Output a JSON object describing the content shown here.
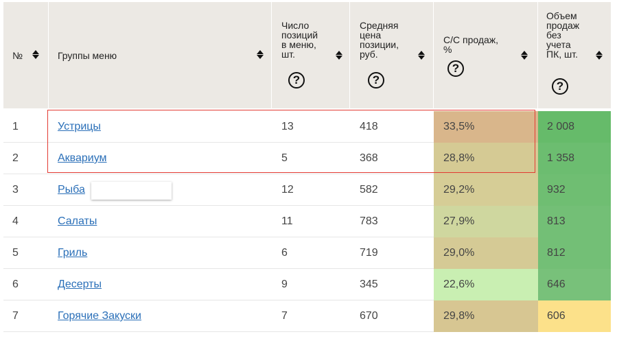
{
  "headers": {
    "num": "№",
    "group": "Группы меню",
    "positions": "Число\nпозиций\nв меню,\nшт.",
    "avg_price": "Средняя\nцена\nпозиции,\nруб.",
    "cost_share": "С/С продаж,\n%",
    "volume": "Объем\nпродаж\nбез\nучета\nПК, шт.",
    "help_glyph": "?"
  },
  "rows": [
    {
      "num": "1",
      "group": "Устрицы",
      "positions": "13",
      "avg_price": "418",
      "cost_share": "33,5%",
      "volume": "2 008"
    },
    {
      "num": "2",
      "group": "Аквариум",
      "positions": "5",
      "avg_price": "368",
      "cost_share": "28,8%",
      "volume": "1 358"
    },
    {
      "num": "3",
      "group": "Рыба",
      "positions": "12",
      "avg_price": "582",
      "cost_share": "29,2%",
      "volume": "932"
    },
    {
      "num": "4",
      "group": "Салаты",
      "positions": "11",
      "avg_price": "783",
      "cost_share": "27,9%",
      "volume": "813"
    },
    {
      "num": "5",
      "group": "Гриль",
      "positions": "6",
      "avg_price": "719",
      "cost_share": "29,0%",
      "volume": "812"
    },
    {
      "num": "6",
      "group": "Десерты",
      "positions": "9",
      "avg_price": "345",
      "cost_share": "22,6%",
      "volume": "646"
    },
    {
      "num": "7",
      "group": "Горячие Закуски",
      "positions": "7",
      "avg_price": "670",
      "cost_share": "29,8%",
      "volume": "606"
    }
  ],
  "colors": {
    "header_bg": "#ece9e4",
    "link": "#2a6fb8",
    "highlight_border": "#e23a32",
    "cost_share_fill": [
      "#d9b68b",
      "#d5ca94",
      "#d6cd96",
      "#cfd79f",
      "#d5ca95",
      "#c9efb2",
      "#d7c692"
    ],
    "volume_fill": [
      "#66bb6a",
      "#6cbd70",
      "#6fbe72",
      "#73bf76",
      "#73bf76",
      "#78c17a",
      "#fce18a"
    ]
  }
}
